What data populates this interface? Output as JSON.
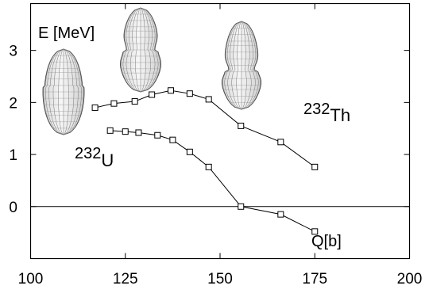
{
  "chart_data": {
    "type": "line",
    "title": "",
    "xlabel": "Q[b]",
    "ylabel": "E  [MeV]",
    "xlim": [
      100,
      200
    ],
    "ylim": [
      -1,
      3.9
    ],
    "x_ticks": [
      "100",
      "125",
      "150",
      "175",
      "200"
    ],
    "y_ticks": [
      "0",
      "1",
      "2",
      "3"
    ],
    "grid": false,
    "zero_line": true,
    "marker": "square",
    "series": [
      {
        "name": "232Th",
        "label_mass": "232",
        "label_symbol": "Th",
        "x": [
          117,
          122,
          127.5,
          132,
          137,
          142,
          147,
          155.5,
          166,
          175
        ],
        "y": [
          1.9,
          1.98,
          2.02,
          2.15,
          2.23,
          2.17,
          2.06,
          1.55,
          1.24,
          0.76
        ]
      },
      {
        "name": "232U",
        "label_mass": "232",
        "label_symbol": "U",
        "x": [
          121,
          125,
          128.5,
          133.5,
          137.5,
          142,
          147,
          155.5,
          166,
          175
        ],
        "y": [
          1.46,
          1.44,
          1.42,
          1.37,
          1.28,
          1.05,
          0.76,
          0.0,
          -0.15,
          -0.48
        ]
      }
    ]
  }
}
